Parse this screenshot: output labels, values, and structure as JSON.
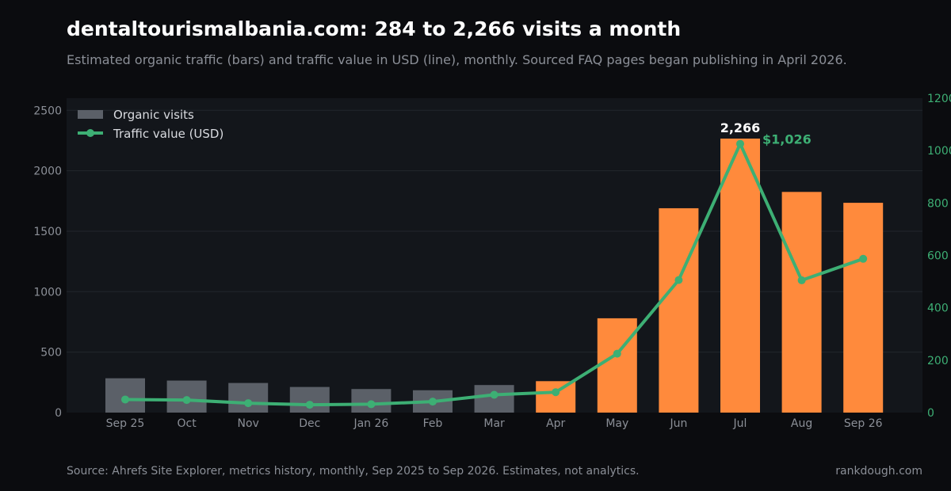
{
  "title": "dentaltourismalbania.com: 284 to 2,266 visits a month",
  "subtitle": "Estimated organic traffic (bars) and traffic value in USD (line), monthly. Sourced FAQ pages began publishing in April 2026.",
  "footer": {
    "source": "Source: Ahrefs Site Explorer, metrics history, monthly, Sep 2025 to Sep 2026. Estimates, not analytics.",
    "brand": "rankdough.com"
  },
  "colors": {
    "background": "#0b0c0f",
    "plot_background": "#13161b",
    "bar_before": "#5b6068",
    "bar_after": "#ff8a3c",
    "line": "#3daf74",
    "grid": "#23262d",
    "axis_text": "#8b8f97"
  },
  "chart_data": {
    "type": "bar+line",
    "categories": [
      "Sep 25",
      "Oct",
      "Nov",
      "Dec",
      "Jan 26",
      "Feb",
      "Mar",
      "Apr",
      "May",
      "Jun",
      "Jul",
      "Aug",
      "Sep 26"
    ],
    "series": [
      {
        "name": "Organic visits",
        "type": "bar",
        "axis": "left",
        "values": [
          284,
          265,
          245,
          212,
          195,
          185,
          228,
          260,
          780,
          1690,
          2266,
          1825,
          1735
        ]
      },
      {
        "name": "Traffic value (USD)",
        "type": "line",
        "axis": "right",
        "values": [
          50,
          48,
          36,
          30,
          32,
          42,
          68,
          78,
          225,
          506,
          1026,
          505,
          587
        ]
      }
    ],
    "highlight_from_index": 7,
    "y_left": {
      "min": 0,
      "max": 2600,
      "ticks": [
        0,
        500,
        1000,
        1500,
        2000,
        2500
      ]
    },
    "y_right": {
      "min": 0,
      "max": 1200,
      "ticks": [
        0,
        200,
        400,
        600,
        800,
        1000,
        1200
      ]
    },
    "annotations": [
      {
        "index": 10,
        "series": "Organic visits",
        "label": "2,266"
      },
      {
        "index": 10,
        "series": "Traffic value (USD)",
        "label": "$1,026"
      }
    ],
    "legend": {
      "position": "top-left",
      "entries": [
        "Organic visits",
        "Traffic value (USD)"
      ]
    },
    "grid": true
  }
}
